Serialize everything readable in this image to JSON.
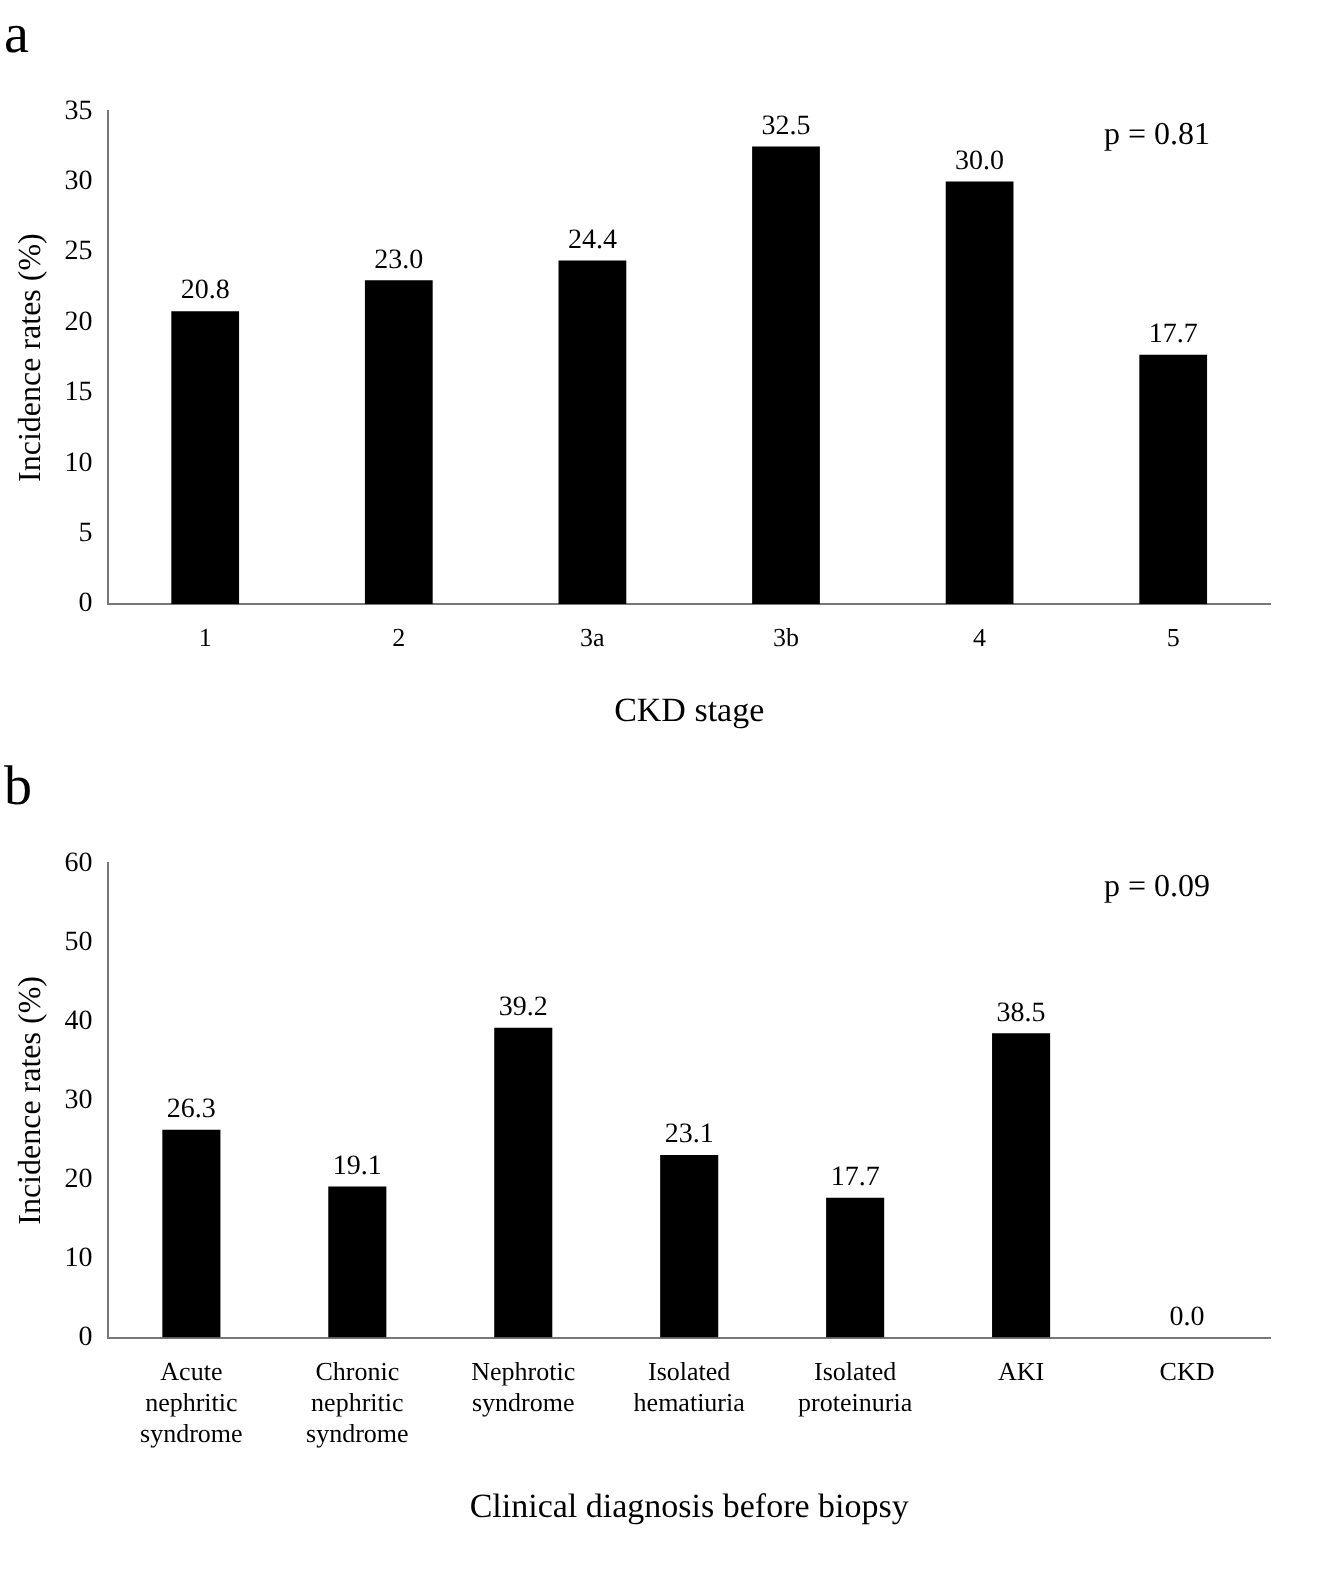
{
  "chart_data": [
    {
      "type": "bar",
      "title": "a",
      "xlabel": "CKD stage",
      "ylabel": "Incidence rates (%)",
      "categories": [
        "1",
        "2",
        "3a",
        "3b",
        "4",
        "5"
      ],
      "values": [
        20.8,
        23.0,
        24.4,
        32.5,
        30.0,
        17.7
      ],
      "value_labels": [
        "20.8",
        "23.0",
        "24.4",
        "32.5",
        "30.0",
        "17.7"
      ],
      "color": "#000000",
      "ylim": [
        0,
        35
      ],
      "yticks": [
        0,
        5,
        10,
        15,
        20,
        25,
        30,
        35
      ],
      "grid": false,
      "annotations": [
        "p = 0.81"
      ]
    },
    {
      "type": "bar",
      "title": "b",
      "xlabel": "Clinical diagnosis before biopsy",
      "ylabel": "Incidence rates (%)",
      "categories": [
        "Acute nephritic syndrome",
        "Chronic nephritic syndrome",
        "Nephrotic syndrome",
        "Isolated hematiuria",
        "Isolated proteinuria",
        "AKI",
        "CKD"
      ],
      "values": [
        26.3,
        19.1,
        39.2,
        23.1,
        17.7,
        38.5,
        0.0
      ],
      "value_labels": [
        "26.3",
        "19.1",
        "39.2",
        "23.1",
        "17.7",
        "38.5",
        "0.0"
      ],
      "color": "#000000",
      "ylim": [
        0,
        60
      ],
      "yticks": [
        0,
        10,
        20,
        30,
        40,
        50,
        60
      ],
      "grid": false,
      "annotations": [
        "p = 0.09"
      ]
    }
  ]
}
